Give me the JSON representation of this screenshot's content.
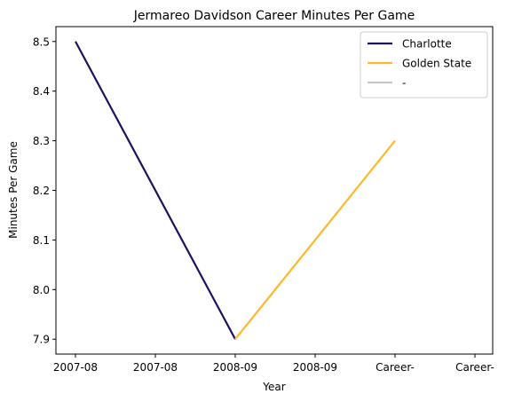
{
  "chart_data": {
    "type": "line",
    "title": "Jermareo Davidson Career Minutes Per Game",
    "xlabel": "Year",
    "ylabel": "Minutes Per Game",
    "categories": [
      "2007-08",
      "2007-08",
      "2008-09",
      "2008-09",
      "Career-",
      "Career-"
    ],
    "ylim": [
      7.87,
      8.53
    ],
    "yticks": [
      7.9,
      8.0,
      8.1,
      8.2,
      8.3,
      8.4,
      8.5
    ],
    "ytick_labels": [
      "7.9",
      "8.0",
      "8.1",
      "8.2",
      "8.3",
      "8.4",
      "8.5"
    ],
    "grid": false,
    "legend_position": "top-right",
    "series": [
      {
        "name": "Charlotte",
        "color": "#1d1160",
        "points": [
          [
            0,
            8.5
          ],
          [
            2,
            7.9
          ]
        ]
      },
      {
        "name": "Golden State",
        "color": "#fdb927",
        "points": [
          [
            2,
            7.9
          ],
          [
            4,
            8.3
          ]
        ]
      },
      {
        "name": "-",
        "color": "#c4c4c4",
        "points": []
      }
    ]
  }
}
